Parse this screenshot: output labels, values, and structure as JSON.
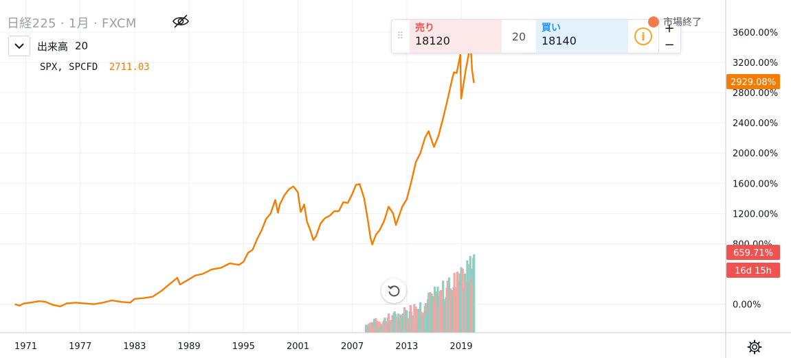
{
  "header": {
    "symbol_title": "日経225 · 1月 · FXCM",
    "market_status": "市場終了"
  },
  "volume_legend": {
    "label": "出来高",
    "value": "20"
  },
  "compare_legend": {
    "symbol": "SPX, SPCFD",
    "value": "2711.03"
  },
  "trade_panel": {
    "sell_label": "売り",
    "sell_price": "18120",
    "quantity": "20",
    "buy_label": "買い",
    "buy_price": "18140",
    "info_symbol": "i",
    "plus": "+",
    "minus": "−"
  },
  "price_axis": {
    "current_label": "2929.08%",
    "volume_label": "659.71%",
    "countdown_label": "16d 15h"
  },
  "colors": {
    "line": "#f57c00",
    "volume_up": "#8ecfc2",
    "volume_down": "#f3a6a3",
    "badge_current": "#f57c00",
    "badge_volume": "#ef5350"
  },
  "icons": [
    "eye-crossed-icon",
    "chevron-down-icon",
    "drag-handle-icon",
    "info-icon",
    "reset-icon",
    "settings-gear-icon"
  ],
  "chart_data": {
    "type": "line",
    "ylabel": "",
    "xlabel": "",
    "y_unit": "%",
    "ylim": [
      -300,
      3850
    ],
    "xlim": [
      1969.0,
      2021.0
    ],
    "y_ticks": [
      "3600.00%",
      "3200.00%",
      "2800.00%",
      "2400.00%",
      "2000.00%",
      "1600.00%",
      "1200.00%",
      "800.00%",
      "0.00%"
    ],
    "y_tick_values": [
      3600,
      3200,
      2800,
      2400,
      2000,
      1600,
      1200,
      800,
      0
    ],
    "x_ticks": [
      "1971",
      "1977",
      "1983",
      "1989",
      "1995",
      "2001",
      "2007",
      "2013",
      "2019"
    ],
    "x_tick_values": [
      1971,
      1977,
      1983,
      1989,
      1995,
      2001,
      2007,
      2013,
      2019
    ],
    "grid": true,
    "series": [
      {
        "name": "SPX, SPCFD",
        "x": [
          1969.8,
          1970.3,
          1970.8,
          1971.5,
          1972.5,
          1973.2,
          1974.0,
          1974.8,
          1975.5,
          1976.5,
          1977.5,
          1978.5,
          1979.5,
          1980.5,
          1981.0,
          1981.5,
          1982.5,
          1983.0,
          1984.0,
          1985.0,
          1986.0,
          1987.0,
          1987.7,
          1988.0,
          1989.0,
          1989.7,
          1990.5,
          1991.5,
          1992.5,
          1993.5,
          1994.5,
          1995.0,
          1995.5,
          1996.0,
          1996.5,
          1997.0,
          1997.5,
          1998.0,
          1998.5,
          1998.8,
          1999.0,
          1999.5,
          2000.0,
          2000.5,
          2001.0,
          2001.3,
          2001.7,
          2002.0,
          2002.3,
          2002.7,
          2003.0,
          2003.5,
          2004.0,
          2004.5,
          2005.0,
          2005.5,
          2006.0,
          2006.5,
          2007.0,
          2007.4,
          2007.8,
          2008.3,
          2008.7,
          2009.0,
          2009.2,
          2009.6,
          2010.0,
          2010.5,
          2011.0,
          2011.5,
          2011.8,
          2012.5,
          2013.0,
          2013.5,
          2014.0,
          2014.5,
          2015.0,
          2015.4,
          2016.0,
          2016.5,
          2017.0,
          2017.5,
          2018.0,
          2018.2,
          2018.5,
          2018.9,
          2019.0,
          2019.5,
          2019.8,
          2020.0,
          2020.2,
          2020.4
        ],
        "y": [
          0,
          -20,
          10,
          20,
          40,
          30,
          -10,
          -30,
          10,
          20,
          10,
          0,
          20,
          50,
          40,
          30,
          20,
          70,
          80,
          100,
          180,
          280,
          350,
          260,
          330,
          380,
          400,
          460,
          480,
          540,
          520,
          560,
          680,
          720,
          860,
          980,
          1130,
          1200,
          1380,
          1210,
          1320,
          1440,
          1520,
          1560,
          1480,
          1220,
          1320,
          1090,
          1000,
          850,
          900,
          1070,
          1140,
          1170,
          1230,
          1230,
          1350,
          1340,
          1460,
          1580,
          1590,
          1400,
          1120,
          880,
          790,
          920,
          980,
          1100,
          1290,
          1200,
          1050,
          1290,
          1390,
          1620,
          1880,
          2000,
          2200,
          2290,
          2080,
          2230,
          2460,
          2710,
          2980,
          3070,
          3060,
          3300,
          2720,
          3100,
          3290,
          3520,
          3100,
          2929.08
        ]
      }
    ],
    "volume": {
      "x_start": 2008.5,
      "x_end": 2020.5,
      "max_percent": 659.71
    }
  }
}
